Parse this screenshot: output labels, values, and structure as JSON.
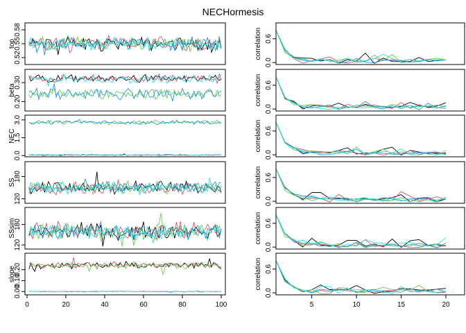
{
  "chart_data": {
    "title": "NECHormesis",
    "type": "line",
    "series_colors": [
      "#000000",
      "#df536b",
      "#61d04f",
      "#2297e6",
      "#28e2e5"
    ],
    "trace_x_axis": {
      "range": [
        0,
        100
      ],
      "ticks": [
        0,
        20,
        40,
        60,
        80,
        100
      ]
    },
    "acf_x_axis": {
      "range": [
        1,
        20
      ],
      "ticks": [
        5,
        10,
        15,
        20
      ]
    },
    "trace_panels": [
      {
        "parameter": "top",
        "ylim": [
          0.505,
          0.595
        ],
        "ticks": [
          0.52,
          0.55,
          0.58
        ],
        "tick_labels": [
          "0.52",
          "0.55",
          "0.58"
        ],
        "levels": [
          0.55,
          0.55,
          0.55,
          0.55,
          0.55
        ],
        "spread": [
          0.012,
          0.012,
          0.012,
          0.012,
          0.012
        ]
      },
      {
        "parameter": "beta",
        "ylim": [
          0.15,
          0.37
        ],
        "ticks": [
          0.2,
          0.3
        ],
        "tick_labels": [
          "0.20",
          "0.30"
        ],
        "levels": [
          0.32,
          0.32,
          0.24,
          0.24,
          0.32
        ],
        "spread": [
          0.018,
          0.018,
          0.025,
          0.025,
          0.018
        ]
      },
      {
        "parameter": "NEC",
        "ylim": [
          -0.1,
          3.4
        ],
        "ticks": [
          0,
          1.5,
          3.0
        ],
        "tick_labels": [
          "0.0",
          "1.5",
          "3.0"
        ],
        "levels": [
          0.05,
          0.05,
          2.8,
          2.8,
          0.05
        ],
        "spread": [
          0.03,
          0.03,
          0.15,
          0.15,
          0.03
        ]
      },
      {
        "parameter": "SS",
        "ylim": [
          108,
          220
        ],
        "ticks": [
          120,
          180
        ],
        "tick_labels": [
          "120",
          "180"
        ],
        "levels": [
          150,
          150,
          150,
          150,
          150
        ],
        "spread": [
          14,
          14,
          14,
          14,
          14
        ]
      },
      {
        "parameter": "SSsim",
        "ylim": [
          108,
          230
        ],
        "ticks": [
          120,
          180
        ],
        "tick_labels": [
          "120",
          "180"
        ],
        "levels": [
          160,
          160,
          160,
          160,
          160
        ],
        "spread": [
          20,
          20,
          20,
          20,
          20
        ]
      },
      {
        "parameter": "slope",
        "ylim": [
          -0.03,
          0.35
        ],
        "ticks": [
          0.0,
          0.1,
          0.2
        ],
        "tick_labels": [
          "0.00",
          "0.10",
          "0.20"
        ],
        "levels": [
          0.24,
          0.24,
          0.24,
          0.0,
          0.0
        ],
        "spread": [
          0.025,
          0.025,
          0.025,
          0.004,
          0.004
        ]
      }
    ],
    "acf_panels": [
      {
        "ylabel": "correlation",
        "ylim": [
          -0.05,
          1.0
        ],
        "ticks": [
          0.0,
          0.6
        ],
        "tick_labels": [
          "0.0",
          "0.6"
        ]
      },
      {
        "ylabel": "correlation",
        "ylim": [
          -0.05,
          1.0
        ],
        "ticks": [
          0.0,
          0.6
        ],
        "tick_labels": [
          "0.0",
          "0.6"
        ]
      },
      {
        "ylabel": "correlation",
        "ylim": [
          -0.05,
          1.0
        ],
        "ticks": [
          0.0,
          0.6
        ],
        "tick_labels": [
          "0.0",
          "0.6"
        ]
      },
      {
        "ylabel": "correlation",
        "ylim": [
          -0.05,
          1.0
        ],
        "ticks": [
          0.0,
          0.6
        ],
        "tick_labels": [
          "0.0",
          "0.6"
        ]
      },
      {
        "ylabel": "correlation",
        "ylim": [
          -0.05,
          1.0
        ],
        "ticks": [
          0.0,
          0.6
        ],
        "tick_labels": [
          "0.0",
          "0.6"
        ]
      },
      {
        "ylabel": "correlation",
        "ylim": [
          -0.05,
          1.0
        ],
        "ticks": [
          0.0,
          0.6
        ],
        "tick_labels": [
          "0.0",
          "0.6"
        ]
      }
    ]
  }
}
